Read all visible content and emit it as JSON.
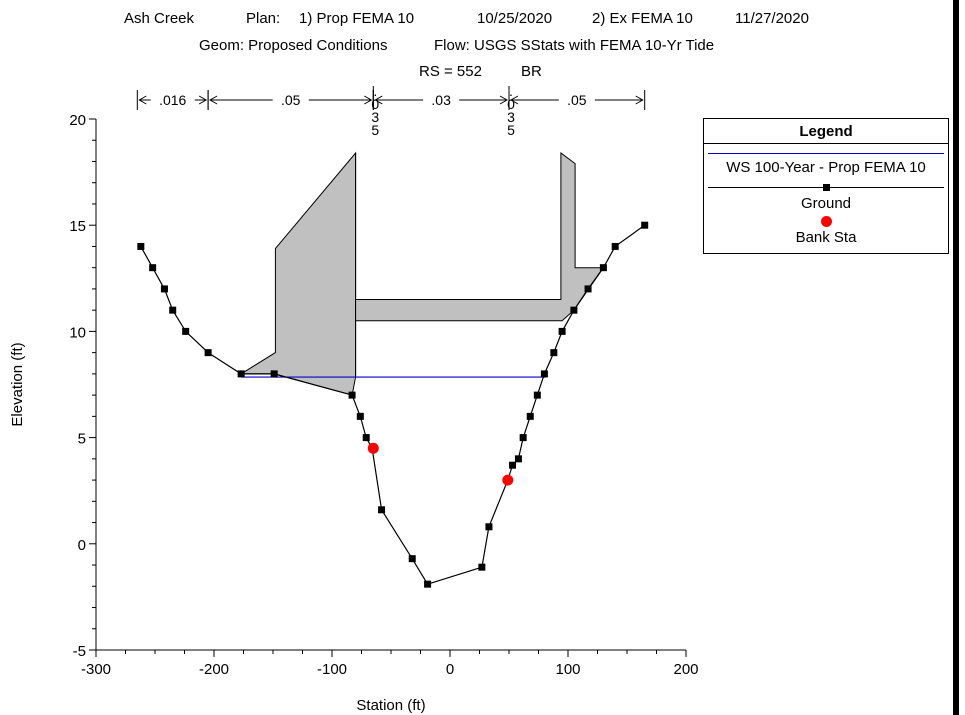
{
  "header": {
    "line1_project": "Ash Creek",
    "line1_plan_label": "Plan:",
    "line1_plan1": "1) Prop FEMA 10",
    "line1_date1": "10/25/2020",
    "line1_plan2": "2) Ex FEMA 10",
    "line1_date2": "11/27/2020",
    "line2_geom": "Geom: Proposed Conditions",
    "line2_flow": "Flow: USGS SStats with FEMA 10-Yr Tide",
    "line3_rs": "RS = 552",
    "line3_type": "BR"
  },
  "chart_data": {
    "type": "line",
    "xlabel": "Station (ft)",
    "ylabel": "Elevation (ft)",
    "xlim": [
      -300,
      200
    ],
    "ylim": [
      -5,
      20
    ],
    "x_ticks": [
      -300,
      -200,
      -100,
      0,
      100,
      200
    ],
    "y_ticks": [
      -5,
      0,
      5,
      10,
      15,
      20
    ],
    "grid": false,
    "legend_placement": "right",
    "manning_n": [
      {
        "label": ".016",
        "from": -265,
        "to": -205
      },
      {
        "label": ".05",
        "from": -205,
        "to": -65
      },
      {
        "label": ".035",
        "from": -65,
        "to": -65,
        "vertical": true
      },
      {
        "label": ".03",
        "from": -65,
        "to": 50
      },
      {
        "label": ".035",
        "from": 50,
        "to": 50,
        "vertical": true
      },
      {
        "label": ".05",
        "from": 50,
        "to": 165
      }
    ],
    "ground": {
      "name": "Ground",
      "color": "#000000",
      "points": [
        [
          -262,
          14
        ],
        [
          -252,
          13
        ],
        [
          -242,
          12
        ],
        [
          -235,
          11
        ],
        [
          -224,
          10
        ],
        [
          -205,
          9
        ],
        [
          -177,
          8
        ],
        [
          -149,
          8
        ],
        [
          -83,
          7
        ],
        [
          -76,
          6
        ],
        [
          -71,
          5
        ],
        [
          -66,
          4.5
        ],
        [
          -58,
          1.6
        ],
        [
          -32,
          -0.7
        ],
        [
          -19,
          -1.9
        ],
        [
          27,
          -1.1
        ],
        [
          33,
          0.8
        ],
        [
          49,
          3
        ],
        [
          53,
          3.7
        ],
        [
          58,
          4
        ],
        [
          62,
          5
        ],
        [
          68,
          6
        ],
        [
          74,
          7
        ],
        [
          80,
          8
        ],
        [
          88,
          9
        ],
        [
          95,
          10
        ],
        [
          105,
          11
        ],
        [
          117,
          12
        ],
        [
          130,
          13
        ],
        [
          140,
          14
        ],
        [
          165,
          15
        ]
      ]
    },
    "water_surface": {
      "name": "WS 100-Year - Prop FEMA 10",
      "color": "#0000cc",
      "elevation": 7.85,
      "from": -177,
      "to": 81
    },
    "bank_stations": {
      "name": "Bank Sta",
      "color": "#ff0000",
      "points": [
        [
          -65,
          4.5
        ],
        [
          49,
          3
        ]
      ]
    },
    "bridge": {
      "fill": "#c0c0c0",
      "upstream_deck_polygon": [
        [
          -177,
          8
        ],
        [
          -149,
          8
        ],
        [
          -83,
          7
        ],
        [
          -80,
          7.85
        ],
        [
          -80,
          18.4
        ],
        [
          -148,
          13.9
        ],
        [
          -148,
          9
        ],
        [
          -177,
          8
        ]
      ],
      "deck_polygon": [
        [
          -80,
          18.4
        ],
        [
          -80,
          11.5
        ],
        [
          94,
          11.5
        ],
        [
          94,
          18.4
        ],
        [
          106,
          17.9
        ],
        [
          106,
          13
        ],
        [
          130,
          13
        ],
        [
          105,
          11
        ],
        [
          95,
          10.5
        ],
        [
          -80,
          10.5
        ],
        [
          -80,
          7.85
        ]
      ]
    }
  }
}
